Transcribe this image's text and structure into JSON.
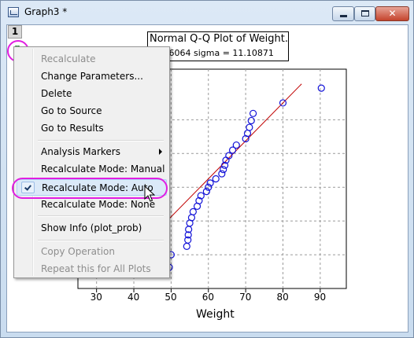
{
  "window": {
    "title": "Graph3 *",
    "close_glyph": "✕"
  },
  "layer": {
    "number": "1"
  },
  "plot": {
    "title": "Normal Q-Q Plot of Weight.",
    "subtitle": "59.96064  sigma = 11.10871",
    "xlabel": "Weight",
    "xticks": [
      "30",
      "40",
      "50",
      "60",
      "70",
      "80",
      "90"
    ]
  },
  "chart_data": {
    "type": "scatter",
    "title": "Normal Q-Q Plot of Weight.",
    "xlabel": "Weight",
    "xlim": [
      25,
      97
    ],
    "ylim": [
      -2.6,
      2.6
    ],
    "x": [
      49.5,
      50,
      54.2,
      54.5,
      54.6,
      54.7,
      55,
      55.5,
      55.9,
      57,
      57.5,
      58,
      59.5,
      60,
      60.5,
      62,
      63.6,
      64,
      64.4,
      64.7,
      65.5,
      66.5,
      67.5,
      70,
      70.5,
      71,
      71.5,
      72,
      80,
      90.3
    ],
    "y": [
      -2.1,
      -1.8,
      -1.6,
      -1.45,
      -1.33,
      -1.2,
      -1.05,
      -0.92,
      -0.78,
      -0.65,
      -0.52,
      -0.4,
      -0.3,
      -0.2,
      -0.1,
      0.0,
      0.12,
      0.22,
      0.32,
      0.44,
      0.55,
      0.68,
      0.8,
      0.95,
      1.08,
      1.22,
      1.38,
      1.55,
      1.8,
      2.15
    ],
    "fit_line": {
      "x": [
        45,
        85
      ],
      "y": [
        -1.35,
        2.25
      ]
    },
    "colors": {
      "points": "#1212d8",
      "fit_line": "#c00000"
    }
  },
  "menu": {
    "items": [
      {
        "label": "Recalculate",
        "disabled": true
      },
      {
        "label": "Change Parameters...",
        "disabled": false
      },
      {
        "label": "Delete",
        "disabled": false
      },
      {
        "label": "Go to Source",
        "disabled": false
      },
      {
        "label": "Go to Results",
        "disabled": false
      },
      {
        "label": "Analysis Markers",
        "disabled": false,
        "submenu": true
      },
      {
        "label": "Recalculate Mode: Manual",
        "disabled": false
      },
      {
        "label": "Recalculate Mode: Auto",
        "disabled": false,
        "checked": true
      },
      {
        "label": "Recalculate Mode: None",
        "disabled": false
      },
      {
        "label": "Show Info (plot_prob)",
        "disabled": false
      },
      {
        "label": "Copy Operation",
        "disabled": true
      },
      {
        "label": "Repeat this for All Plots",
        "disabled": true
      }
    ]
  },
  "colors": {
    "highlight": "#e11ee1",
    "lock_icon": "#1f8a2e"
  }
}
